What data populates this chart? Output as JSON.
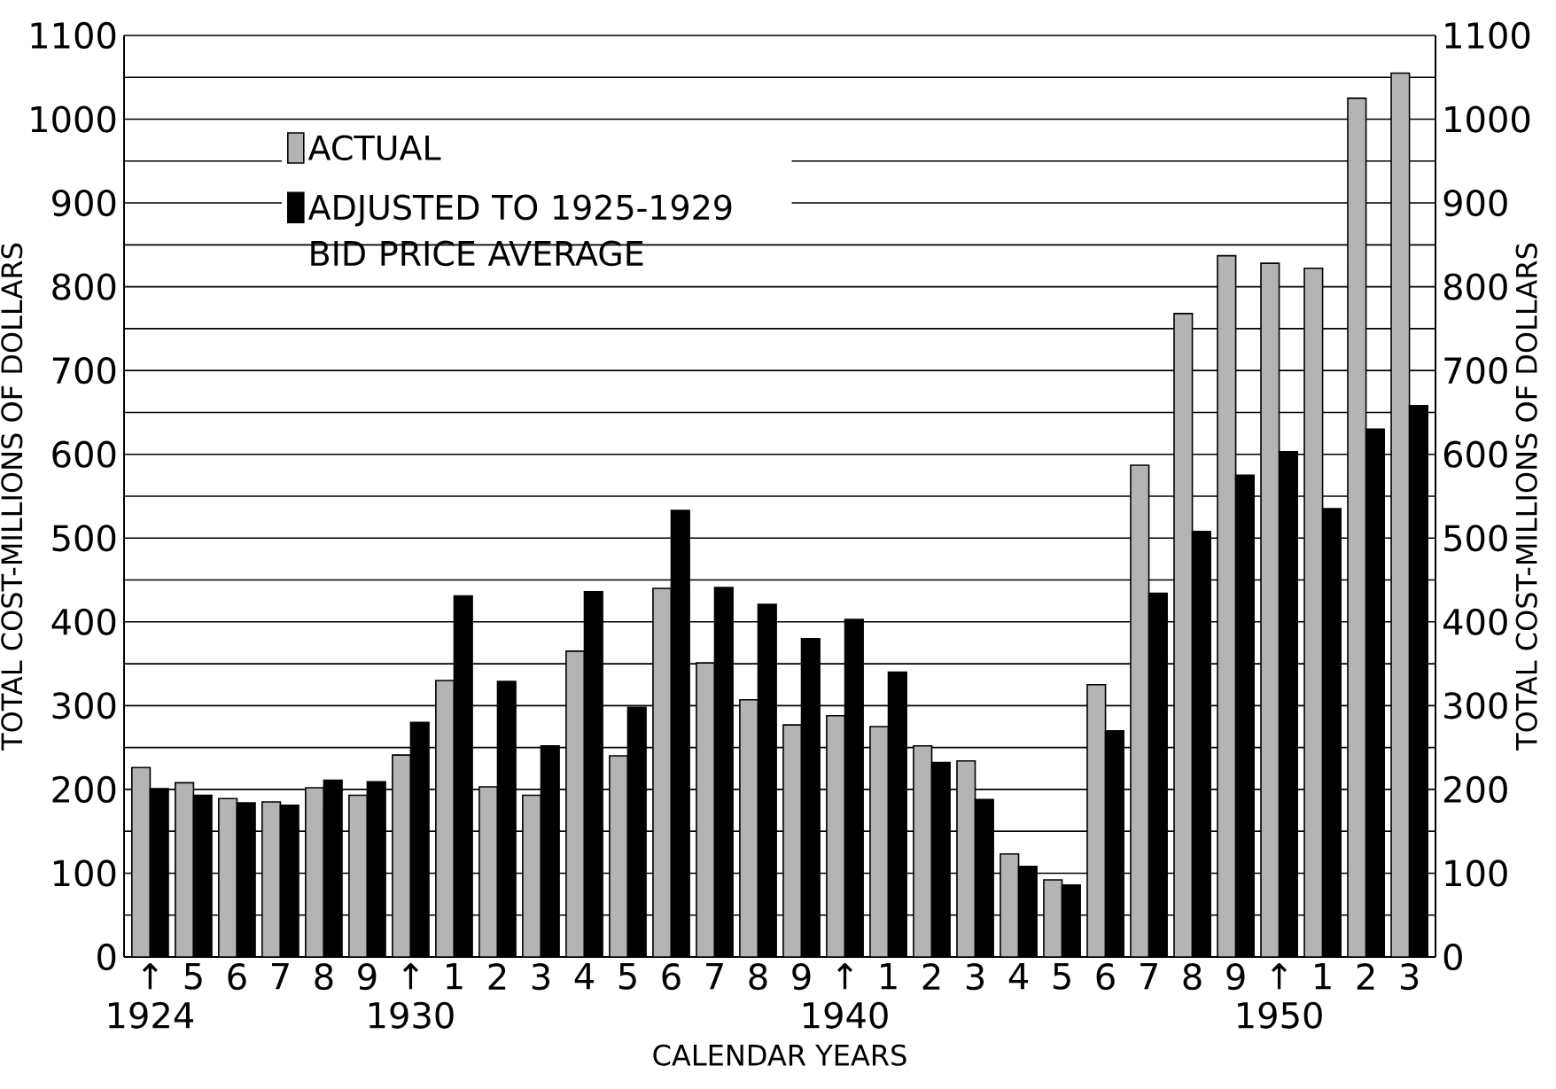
{
  "chart_data": {
    "type": "bar",
    "xlabel": "CALENDAR YEARS",
    "ylabel": "TOTAL COST-MILLIONS OF DOLLARS",
    "y2label": "TOTAL COST-MILLIONS OF DOLLARS",
    "categories": [
      "↑ 1924",
      "5",
      "6",
      "7",
      "8",
      "9",
      "↑ 1930",
      "1",
      "2",
      "3",
      "4",
      "5",
      "6",
      "7",
      "8",
      "9",
      "↑ 1940",
      "1",
      "2",
      "3",
      "4",
      "5",
      "6",
      "7",
      "8",
      "9",
      "↑ 1950",
      "1",
      "2",
      "3"
    ],
    "series": [
      {
        "name": "ACTUAL",
        "color": "#b4b4b4",
        "values": [
          226,
          208,
          189,
          185,
          202,
          193,
          241,
          330,
          203,
          193,
          365,
          240,
          440,
          351,
          307,
          277,
          288,
          275,
          252,
          234,
          123,
          92,
          325,
          587,
          768,
          837,
          828,
          822,
          1025,
          1055
        ]
      },
      {
        "name": "ADJUSTED TO 1925-1929 BID PRICE AVERAGE",
        "color": "#000000",
        "values": [
          201,
          193,
          184,
          181,
          211,
          209,
          280,
          431,
          329,
          252,
          436,
          298,
          533,
          441,
          421,
          380,
          403,
          340,
          232,
          188,
          108,
          86,
          270,
          434,
          508,
          575,
          603,
          535,
          630,
          658
        ]
      }
    ],
    "ylim": [
      0,
      1100
    ],
    "yticks": [
      0,
      {
        "value": 50,
        "label": null
      },
      100,
      {
        "value": 150,
        "label": null
      },
      200,
      {
        "value": 250,
        "label": null
      },
      300,
      {
        "value": 350,
        "label": null
      },
      400,
      {
        "value": 450,
        "label": null
      },
      500,
      {
        "value": 550,
        "label": null
      },
      600,
      {
        "value": 650,
        "label": null
      },
      700,
      {
        "value": 750,
        "label": null
      },
      800,
      {
        "value": 850,
        "label": null
      },
      900,
      {
        "value": 950,
        "label": null
      },
      1000,
      {
        "value": 1050,
        "label": null
      },
      1100
    ],
    "y2lim": [
      0,
      1100
    ],
    "y2ticks": [
      0,
      100,
      200,
      300,
      400,
      500,
      600,
      700,
      800,
      900,
      1000,
      1100
    ],
    "grid": "y",
    "legend": "top left"
  }
}
